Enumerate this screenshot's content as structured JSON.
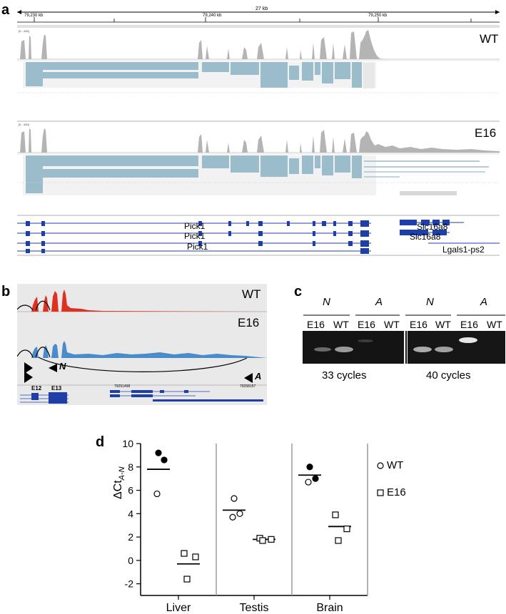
{
  "panel_a": {
    "letter": "a",
    "scale_label": "27 kb",
    "coord_ticks": [
      "79,230 kb",
      "79,240 kb",
      "79,250 kb"
    ],
    "track_range_wt": "[0 - 445]",
    "track_range_e16": "[0 - 445]",
    "sample_wt": "WT",
    "sample_e16": "E16",
    "genes": [
      "Pick1",
      "Pick1",
      "Pick1",
      "Slc16a8",
      "Slc16a8",
      "Lgals1-ps2"
    ],
    "colors": {
      "coverage": "#b4b4b4",
      "junction": "#9bbccb",
      "gene": "#1f3fa8"
    }
  },
  "panel_b": {
    "letter": "b",
    "sample_wt": "WT",
    "sample_e16": "E16",
    "primer_n": "N",
    "primer_a": "A",
    "exon_e12": "E12",
    "exon_e13": "E13",
    "coord_left": "79251498",
    "coord_right": "79258157",
    "colors": {
      "wt": "#e03020",
      "e16": "#4a8cc8"
    }
  },
  "panel_c": {
    "letter": "c",
    "groups": [
      "N",
      "A",
      "N",
      "A"
    ],
    "lanes": [
      "E16",
      "WT",
      "E16",
      "WT",
      "E16",
      "WT",
      "E16",
      "WT"
    ],
    "cycles": [
      "33 cycles",
      "40 cycles"
    ]
  },
  "panel_d": {
    "letter": "d",
    "legend_wt": "WT",
    "legend_e16": "E16",
    "ylabel_main": "ΔCt",
    "ylabel_sub": "A-N",
    "tissues": [
      "Liver",
      "Testis",
      "Brain"
    ]
  },
  "chart_data": {
    "type": "scatter",
    "xlabel": "",
    "ylabel": "ΔCtA-N",
    "ylim": [
      -3,
      10
    ],
    "yticks": [
      "10",
      "8",
      "6",
      "4",
      "2",
      "0",
      "-2"
    ],
    "categories": [
      "Liver",
      "Testis",
      "Brain"
    ],
    "series": [
      {
        "name": "WT",
        "marker": "circle",
        "points": [
          [
            9.2,
            8.6,
            5.7
          ],
          [
            5.3,
            4.0,
            3.7
          ],
          [
            8.0,
            7.0,
            6.7
          ]
        ],
        "means": [
          7.8,
          4.3,
          7.3
        ]
      },
      {
        "name": "E16",
        "marker": "square",
        "points": [
          [
            0.6,
            0.3,
            -1.6
          ],
          [
            1.9,
            1.8,
            1.7
          ],
          [
            3.9,
            2.7,
            1.7
          ]
        ],
        "means": [
          -0.3,
          1.8,
          2.9
        ]
      }
    ],
    "filled_wt_points": [
      [
        true,
        true,
        false
      ],
      [
        false,
        false,
        false
      ],
      [
        true,
        true,
        false
      ]
    ]
  }
}
